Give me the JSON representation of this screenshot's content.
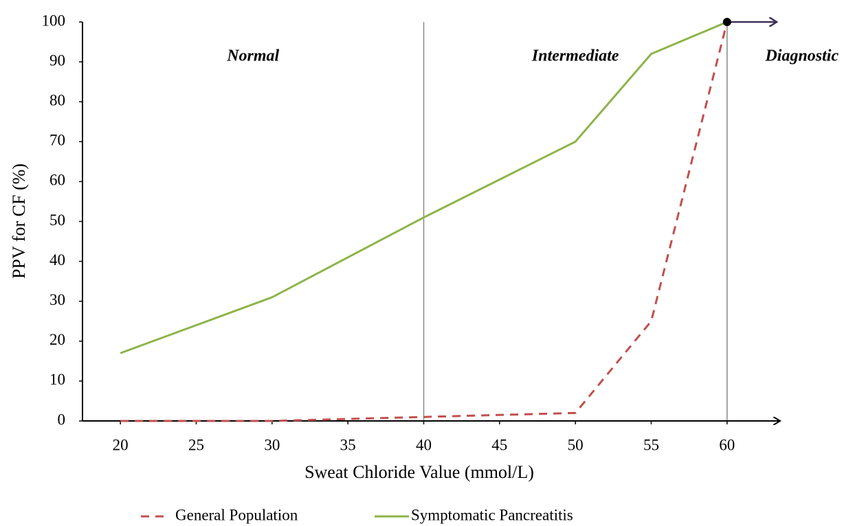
{
  "chart_data": {
    "type": "line",
    "x_label": "Sweat Chloride Value (mmol/L)",
    "y_label": "PPV for CF (%)",
    "xlim": [
      17.5,
      63.5
    ],
    "ylim": [
      0,
      100
    ],
    "xticks": [
      20,
      25,
      30,
      35,
      40,
      45,
      50,
      55,
      60
    ],
    "yticks": [
      0,
      10,
      20,
      30,
      40,
      50,
      60,
      70,
      80,
      90,
      100
    ],
    "thresholds": [
      40,
      60
    ],
    "regions": [
      "Normal",
      "Intermediate",
      "Diagnostic"
    ],
    "series": [
      {
        "name": "General Population",
        "color": "#c0504d",
        "style": "dashed",
        "x": [
          20,
          30,
          40,
          50,
          55,
          60
        ],
        "values": [
          0,
          0,
          1,
          2,
          25,
          100
        ]
      },
      {
        "name": "Symptomatic Pancreatitis",
        "color": "#8db44a",
        "style": "solid",
        "x": [
          20,
          30,
          40,
          50,
          55,
          60
        ],
        "values": [
          17,
          31,
          51,
          70,
          92,
          100
        ]
      }
    ]
  }
}
